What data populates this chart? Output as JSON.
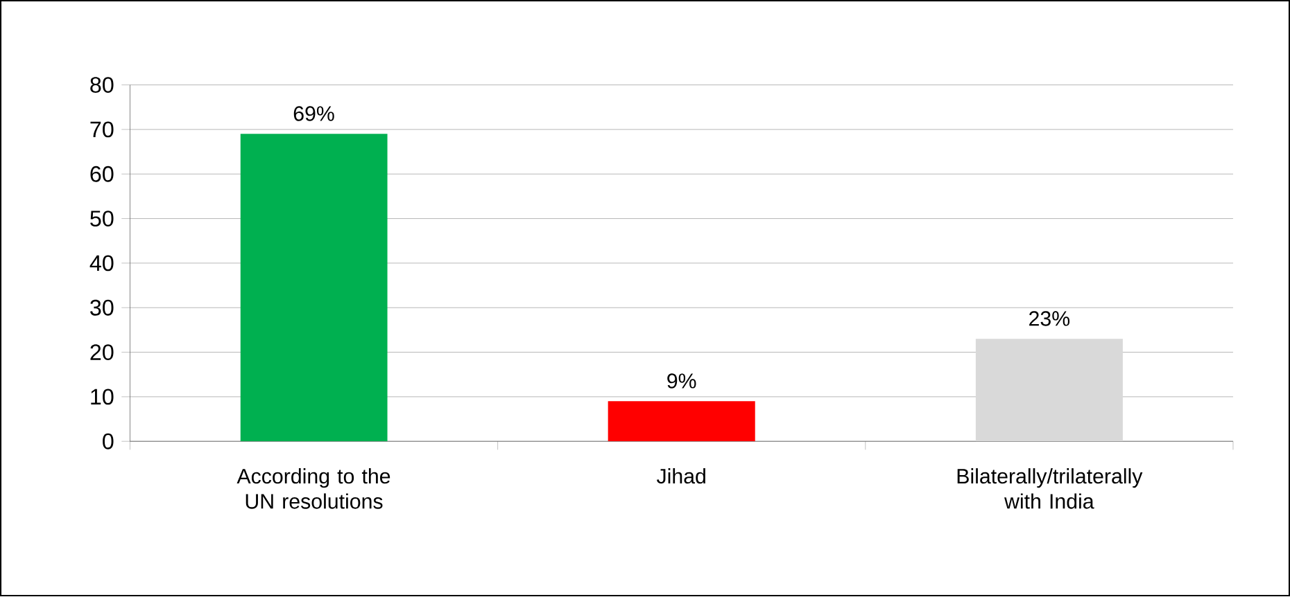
{
  "chart_data": {
    "type": "bar",
    "categories": [
      "According to the UN resolutions",
      "Jihad",
      "Bilaterally/trilaterally with India"
    ],
    "values": [
      69,
      9,
      23
    ],
    "colors": [
      "#00b050",
      "#ff0000",
      "#d9d9d9"
    ],
    "value_labels": [
      "69%",
      "9%",
      "23%"
    ],
    "ylim": [
      0,
      80
    ],
    "yticks": [
      0,
      10,
      20,
      30,
      40,
      50,
      60,
      70,
      80
    ],
    "grid": "y"
  }
}
